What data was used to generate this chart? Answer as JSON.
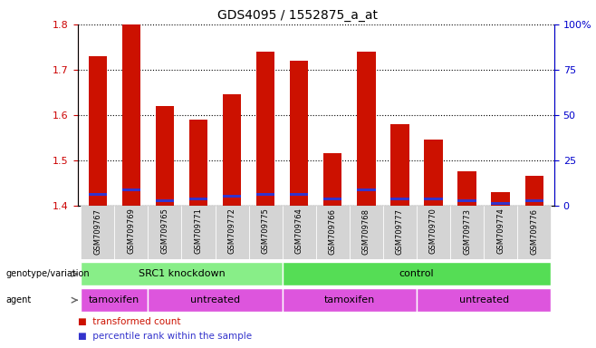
{
  "title": "GDS4095 / 1552875_a_at",
  "samples": [
    "GSM709767",
    "GSM709769",
    "GSM709765",
    "GSM709771",
    "GSM709772",
    "GSM709775",
    "GSM709764",
    "GSM709766",
    "GSM709768",
    "GSM709777",
    "GSM709770",
    "GSM709773",
    "GSM709774",
    "GSM709776"
  ],
  "red_values": [
    1.73,
    1.8,
    1.62,
    1.59,
    1.645,
    1.74,
    1.72,
    1.515,
    1.74,
    1.58,
    1.545,
    1.475,
    1.43,
    1.465
  ],
  "blue_values": [
    1.425,
    1.435,
    1.41,
    1.415,
    1.42,
    1.425,
    1.425,
    1.415,
    1.435,
    1.415,
    1.415,
    1.41,
    1.405,
    1.41
  ],
  "ymin": 1.4,
  "ymax": 1.8,
  "yticks": [
    1.4,
    1.5,
    1.6,
    1.7,
    1.8
  ],
  "y2min": 0,
  "y2max": 100,
  "y2ticks": [
    0,
    25,
    50,
    75,
    100
  ],
  "y2ticklabels": [
    "0",
    "25",
    "50",
    "75",
    "100%"
  ],
  "bar_color": "#cc1100",
  "blue_color": "#3333cc",
  "genotype_groups": [
    {
      "label": "SRC1 knockdown",
      "start": 0,
      "end": 6,
      "color": "#88ee88"
    },
    {
      "label": "control",
      "start": 6,
      "end": 14,
      "color": "#55dd55"
    }
  ],
  "agent_groups": [
    {
      "label": "tamoxifen",
      "start": 0,
      "end": 2,
      "color": "#dd55dd"
    },
    {
      "label": "untreated",
      "start": 2,
      "end": 6,
      "color": "#dd55dd"
    },
    {
      "label": "tamoxifen",
      "start": 6,
      "end": 10,
      "color": "#dd55dd"
    },
    {
      "label": "untreated",
      "start": 10,
      "end": 14,
      "color": "#dd55dd"
    }
  ],
  "legend_items": [
    {
      "label": "transformed count",
      "color": "#cc1100"
    },
    {
      "label": "percentile rank within the sample",
      "color": "#3333cc"
    }
  ],
  "bar_width": 0.55,
  "tick_label_color_left": "#cc0000",
  "tick_label_color_right": "#0000cc",
  "sample_bg_color": "#d4d4d4",
  "geno_border_color": "#ffffff",
  "agent_border_color": "#ffffff"
}
